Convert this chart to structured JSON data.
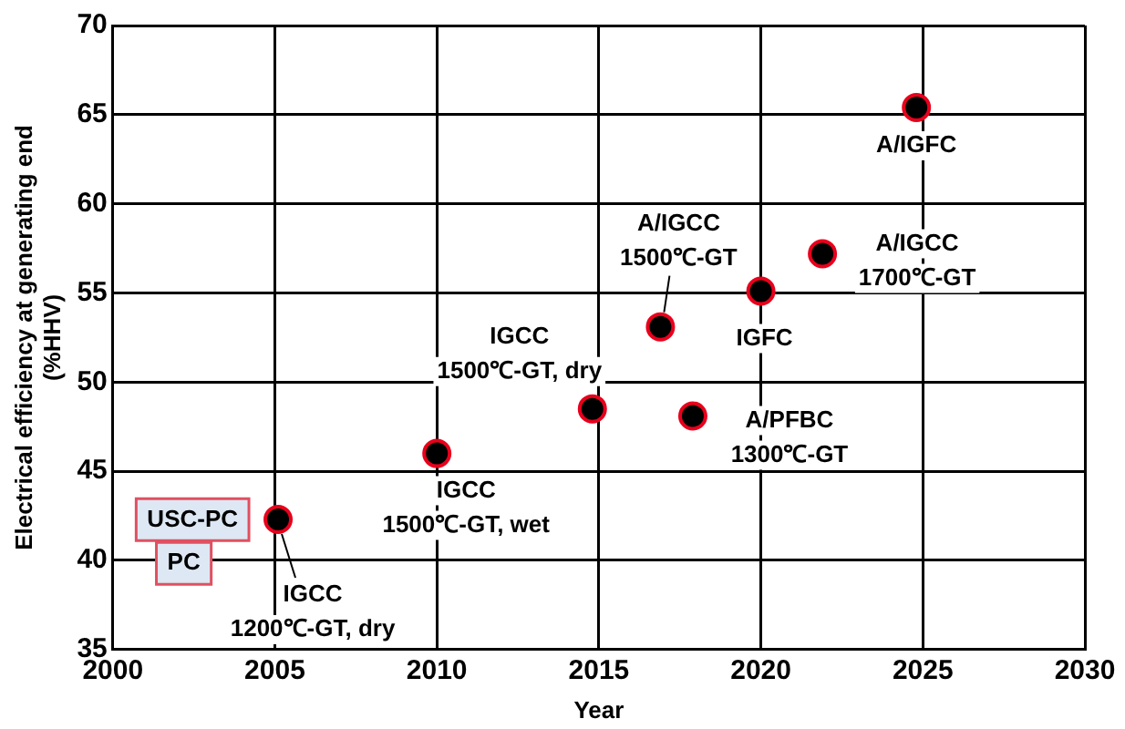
{
  "chart_data": {
    "type": "scatter",
    "xlabel": "Year",
    "ylabel": "Electrical efficiency at generating end\n(%HHV)",
    "x": [
      2005.1,
      2010.0,
      2014.8,
      2016.9,
      2017.9,
      2020.0,
      2021.9,
      2024.8
    ],
    "values": [
      42.3,
      46.0,
      48.5,
      53.1,
      48.1,
      55.1,
      57.2,
      65.4
    ],
    "color": "#000000",
    "marker": "circle",
    "xlim": [
      2000,
      2030
    ],
    "xticks": [
      2000,
      2005,
      2010,
      2015,
      2020,
      2025,
      2030
    ],
    "ylim": [
      35,
      70
    ],
    "yticks": [
      35,
      40,
      45,
      50,
      55,
      60,
      65,
      70
    ],
    "grid": true,
    "legend": false,
    "annotations": [
      {
        "text": "IGCC\n1200℃-GT, dry",
        "x": 2005.1,
        "y": 42.3
      },
      {
        "text": "IGCC\n1500℃-GT, wet",
        "x": 2010.0,
        "y": 46.0
      },
      {
        "text": "IGCC\n1500℃-GT, dry",
        "x": 2014.8,
        "y": 48.5
      },
      {
        "text": "A/IGCC\n1500℃-GT",
        "x": 2016.9,
        "y": 53.1
      },
      {
        "text": "A/PFBC\n1300℃-GT",
        "x": 2017.9,
        "y": 48.1
      },
      {
        "text": "IGFC",
        "x": 2020.0,
        "y": 55.1
      },
      {
        "text": "A/IGCC\n1700℃-GT",
        "x": 2021.9,
        "y": 57.2
      },
      {
        "text": "A/IGFC",
        "x": 2024.8,
        "y": 65.4
      },
      "USC-PC",
      "PC"
    ]
  }
}
